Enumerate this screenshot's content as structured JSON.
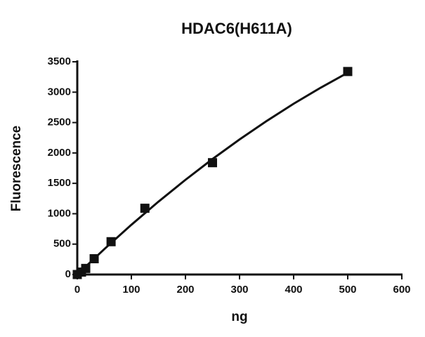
{
  "chart_data": {
    "type": "scatter",
    "title": "HDAC6(H611A)",
    "x_label": "ng",
    "y_label": "Fluorescence",
    "x": [
      0,
      7.8,
      15.6,
      31.25,
      62.5,
      125,
      250,
      500
    ],
    "values": [
      0,
      40,
      100,
      260,
      540,
      1090,
      1840,
      3340
    ],
    "color": "#111111",
    "fit": {
      "x": [
        0,
        50,
        100,
        150,
        200,
        250,
        300,
        350,
        400,
        450,
        500
      ],
      "values": [
        0,
        418,
        818,
        1198,
        1558,
        1900,
        2222,
        2525,
        2810,
        3074,
        3320
      ]
    },
    "xlim": [
      0,
      600
    ],
    "xticks": [
      0,
      100,
      200,
      300,
      400,
      500,
      600
    ],
    "ylim": [
      0,
      3500
    ],
    "yticks": [
      0,
      500,
      1000,
      1500,
      2000,
      2500,
      3000,
      3500
    ]
  }
}
